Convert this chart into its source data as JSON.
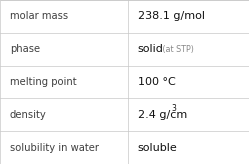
{
  "rows": [
    {
      "label": "molar mass",
      "value": "238.1 g/mol",
      "type": "plain"
    },
    {
      "label": "phase",
      "value": "solid",
      "type": "phase",
      "suffix": " (at STP)"
    },
    {
      "label": "melting point",
      "value": "100 °C",
      "type": "plain"
    },
    {
      "label": "density",
      "value": "2.4 g/cm",
      "type": "super",
      "superscript": "3"
    },
    {
      "label": "solubility in water",
      "value": "soluble",
      "type": "plain"
    }
  ],
  "col_split": 0.513,
  "bg_color": "#ffffff",
  "line_color": "#c8c8c8",
  "label_color": "#404040",
  "value_color": "#111111",
  "suffix_color": "#888888",
  "label_fontsize": 7.2,
  "value_fontsize": 8.0,
  "suffix_fontsize": 5.8,
  "super_fontsize": 5.5,
  "figsize": [
    2.49,
    1.64
  ],
  "dpi": 100
}
